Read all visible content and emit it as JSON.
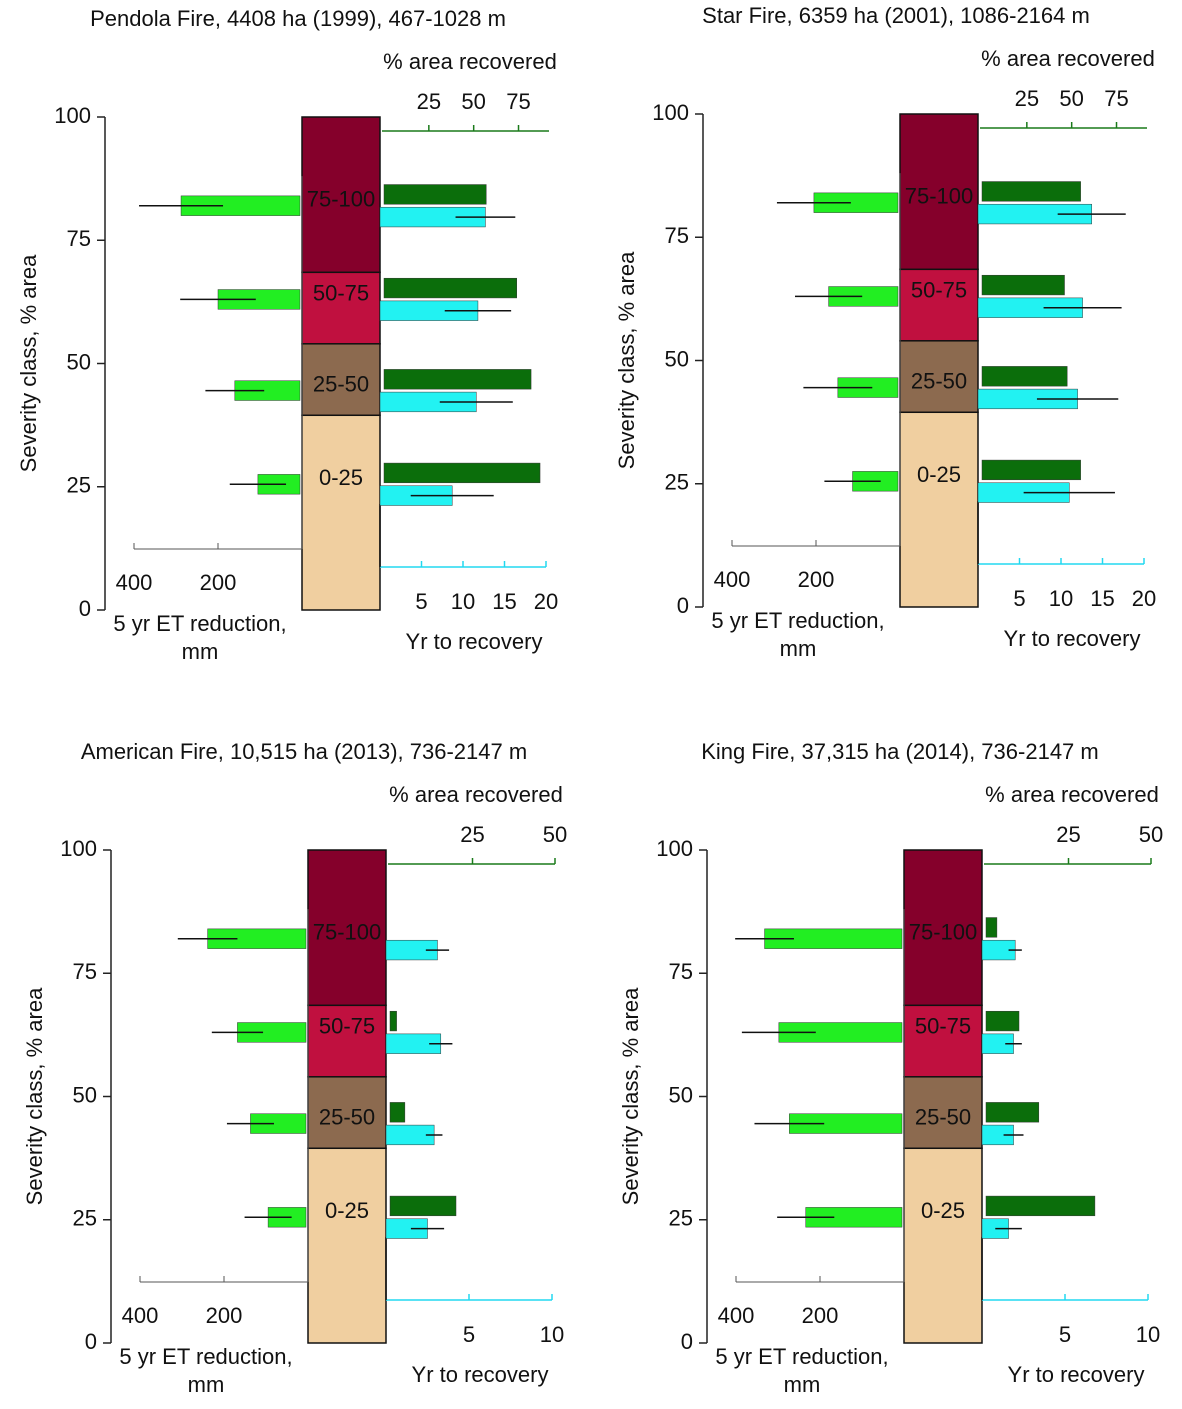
{
  "chart_data": [
    {
      "type": "bar",
      "title": "Pendola Fire, 4408 ha (1999), 467-1028 m",
      "ylabel": "Severity class, % area",
      "ylim": [
        0,
        100
      ],
      "yticks": [
        0,
        25,
        50,
        75,
        100
      ],
      "severity": {
        "categories": [
          "0-25",
          "25-50",
          "50-75",
          "75-100"
        ],
        "values": [
          39.5,
          14.5,
          14.5,
          31.5
        ],
        "colors": [
          "#f0cfa0",
          "#8c6a4f",
          "#c0103f",
          "#85002b"
        ]
      },
      "et": {
        "label": "5 yr ET reduction, mm",
        "xlim": [
          0,
          400
        ],
        "xticks": [
          400,
          200
        ],
        "color": "#22ee22",
        "values": [
          105,
          160,
          200,
          288
        ],
        "errors": [
          67,
          70,
          90,
          100
        ]
      },
      "area": {
        "label": "% area recovered",
        "xlim": [
          0,
          92
        ],
        "xticks": [
          25,
          50,
          75
        ],
        "color": "#0b6e0b",
        "values": [
          87,
          82,
          74,
          57
        ]
      },
      "years": {
        "label": "Yr to recovery",
        "xlim": [
          0,
          20
        ],
        "xticks": [
          5,
          10,
          15,
          20
        ],
        "color": "#22f2f2",
        "values": [
          8.7,
          11.6,
          11.8,
          12.7
        ],
        "errors": [
          5,
          4.4,
          4,
          3.6
        ]
      }
    },
    {
      "type": "bar",
      "title": "Star Fire, 6359 ha (2001), 1086-2164 m",
      "ylabel": "Severity class, % area",
      "ylim": [
        0,
        100
      ],
      "yticks": [
        0,
        25,
        50,
        75,
        100
      ],
      "severity": {
        "categories": [
          "0-25",
          "25-50",
          "50-75",
          "75-100"
        ],
        "values": [
          39.5,
          14.5,
          14.5,
          31.5
        ],
        "colors": [
          "#f0cfa0",
          "#8c6a4f",
          "#c0103f",
          "#85002b"
        ]
      },
      "et": {
        "label": "5 yr ET reduction, mm",
        "xlim": [
          0,
          400
        ],
        "xticks": [
          400,
          200
        ],
        "color": "#22ee22",
        "values": [
          113,
          148,
          170,
          205
        ],
        "errors": [
          67,
          82,
          80,
          88
        ]
      },
      "area": {
        "label": "% area recovered",
        "xlim": [
          0,
          92
        ],
        "xticks": [
          25,
          50,
          75
        ],
        "color": "#0b6e0b",
        "values": [
          55,
          47.5,
          46,
          55
        ]
      },
      "years": {
        "label": "Yr to recovery",
        "xlim": [
          0,
          20
        ],
        "xticks": [
          5,
          10,
          15,
          20
        ],
        "color": "#22f2f2",
        "values": [
          11,
          12,
          12.6,
          13.7
        ],
        "errors": [
          5.5,
          4.9,
          4.7,
          4.1
        ]
      }
    },
    {
      "type": "bar",
      "title": "American Fire, 10,515 ha (2013), 736-2147 m",
      "ylabel": "Severity class, % area",
      "ylim": [
        0,
        100
      ],
      "yticks": [
        0,
        25,
        50,
        75,
        100
      ],
      "severity": {
        "categories": [
          "0-25",
          "25-50",
          "50-75",
          "75-100"
        ],
        "values": [
          39.5,
          14.5,
          14.5,
          31.5
        ],
        "colors": [
          "#f0cfa0",
          "#8c6a4f",
          "#c0103f",
          "#85002b"
        ]
      },
      "et": {
        "label": "5 yr ET reduction, mm",
        "xlim": [
          0,
          400
        ],
        "xticks": [
          400,
          200
        ],
        "color": "#22ee22",
        "values": [
          95,
          137,
          168,
          239
        ],
        "errors": [
          56,
          56,
          61,
          71
        ]
      },
      "area": {
        "label": "% area recovered",
        "xlim": [
          0,
          50
        ],
        "xticks": [
          25,
          50
        ],
        "color": "#0b6e0b",
        "values": [
          20,
          4.5,
          2,
          0
        ]
      },
      "years": {
        "label": "Yr to recovery",
        "xlim": [
          0,
          10
        ],
        "xticks": [
          5,
          10
        ],
        "color": "#22f2f2",
        "values": [
          2.5,
          2.9,
          3.3,
          3.1
        ],
        "errors": [
          1,
          0.5,
          0.7,
          0.7
        ]
      }
    },
    {
      "type": "bar",
      "title": "King Fire, 37,315 ha (2014), 736-2147 m",
      "ylabel": "Severity class, % area",
      "ylim": [
        0,
        100
      ],
      "yticks": [
        0,
        25,
        50,
        75,
        100
      ],
      "severity": {
        "categories": [
          "0-25",
          "25-50",
          "50-75",
          "75-100"
        ],
        "values": [
          39.5,
          14.5,
          14.5,
          31.5
        ],
        "colors": [
          "#f0cfa0",
          "#8c6a4f",
          "#c0103f",
          "#85002b"
        ]
      },
      "et": {
        "label": "5 yr ET reduction, mm",
        "xlim": [
          0,
          400
        ],
        "xticks": [
          400,
          200
        ],
        "color": "#22ee22",
        "values": [
          234,
          273,
          298,
          332
        ],
        "errors": [
          68,
          83,
          88,
          70
        ]
      },
      "area": {
        "label": "% area recovered",
        "xlim": [
          0,
          50
        ],
        "xticks": [
          25,
          50
        ],
        "color": "#0b6e0b",
        "values": [
          33,
          16,
          10,
          3.3
        ]
      },
      "years": {
        "label": "Yr to recovery",
        "xlim": [
          0,
          10
        ],
        "xticks": [
          5,
          10
        ],
        "color": "#22f2f2",
        "values": [
          1.6,
          1.9,
          1.9,
          2.0
        ],
        "errors": [
          0.8,
          0.6,
          0.5,
          0.4
        ]
      }
    }
  ]
}
